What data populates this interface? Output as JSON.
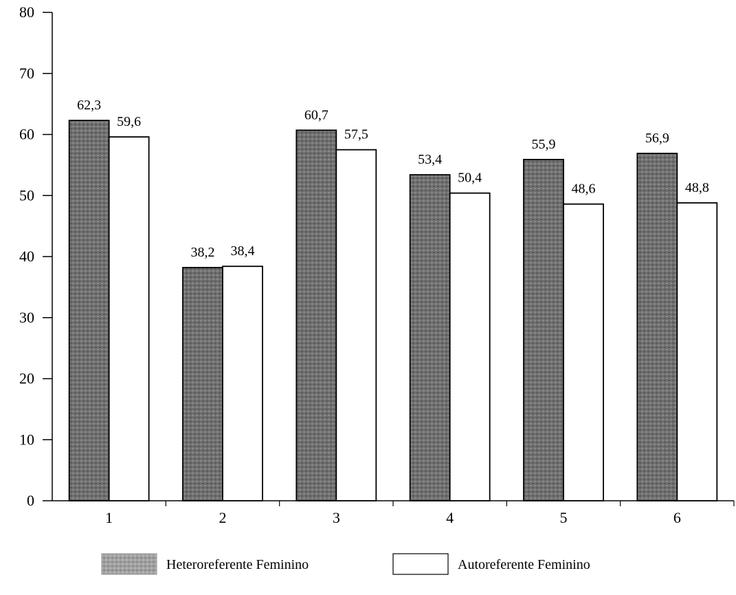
{
  "chart_data": {
    "type": "bar",
    "title": "",
    "xlabel": "",
    "ylabel": "",
    "categories": [
      "1",
      "2",
      "3",
      "4",
      "5",
      "6"
    ],
    "series": [
      {
        "name": "Heteroreferente Feminino",
        "values": [
          62.3,
          38.2,
          60.7,
          53.4,
          55.9,
          56.9
        ],
        "labels": [
          "62,3",
          "38,2",
          "60,7",
          "53,4",
          "55,9",
          "56,9"
        ],
        "color": "#6e6e6e"
      },
      {
        "name": "Autoreferente Feminino",
        "values": [
          59.6,
          38.4,
          57.5,
          50.4,
          48.6,
          48.8
        ],
        "labels": [
          "59,6",
          "38,4",
          "57,5",
          "50,4",
          "48,6",
          "48,8"
        ],
        "color": "#ffffff"
      }
    ],
    "ylim": [
      0,
      80
    ],
    "yticks": [
      "0",
      "10",
      "20",
      "30",
      "40",
      "50",
      "60",
      "70",
      "80"
    ],
    "grid": false,
    "legend_position": "bottom"
  }
}
